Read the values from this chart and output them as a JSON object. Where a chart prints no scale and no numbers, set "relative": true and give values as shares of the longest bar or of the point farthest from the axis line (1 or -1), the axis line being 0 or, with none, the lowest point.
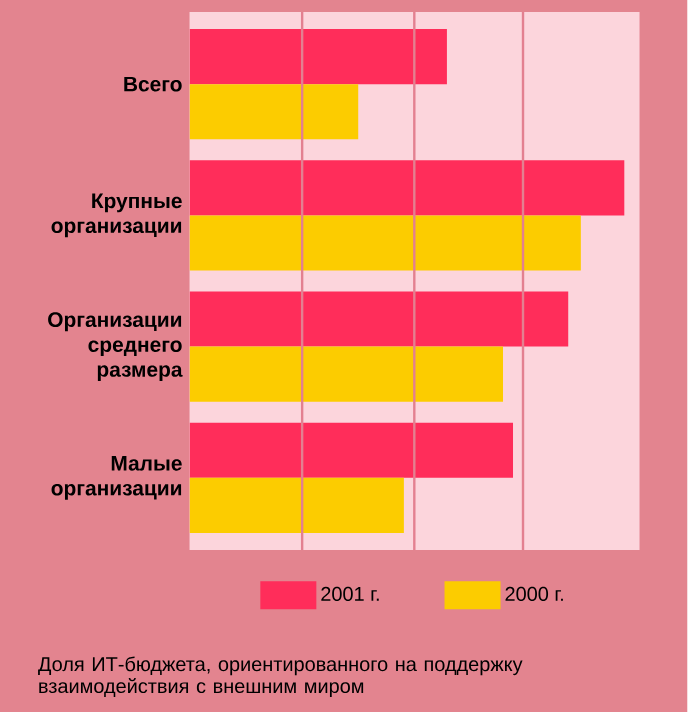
{
  "chart_data": {
    "type": "bar",
    "orientation": "horizontal",
    "relative": true,
    "categories": [
      "Всего",
      "Крупные организации",
      "Организации среднего размера",
      "Малые организации"
    ],
    "series": [
      {
        "name": "2001 г.",
        "color": "#ff2d5a",
        "values": [
          0.592,
          1,
          0.871,
          0.744
        ]
      },
      {
        "name": "2000 г.",
        "color": "#fccc00",
        "values": [
          0.388,
          0.9,
          0.721,
          0.493
        ]
      }
    ],
    "ref_lines": [
      {
        "axis": "x",
        "value": 0.259,
        "color": "#e38090"
      },
      {
        "axis": "x",
        "value": 0.517,
        "color": "#e38090"
      },
      {
        "axis": "x",
        "value": 0.767,
        "color": "#e38090"
      }
    ],
    "legend": "bottom",
    "annotations": [
      "Доля ИТ-бюджета, ориентированного на поддержку взаимодействия с внешним миром"
    ]
  }
}
